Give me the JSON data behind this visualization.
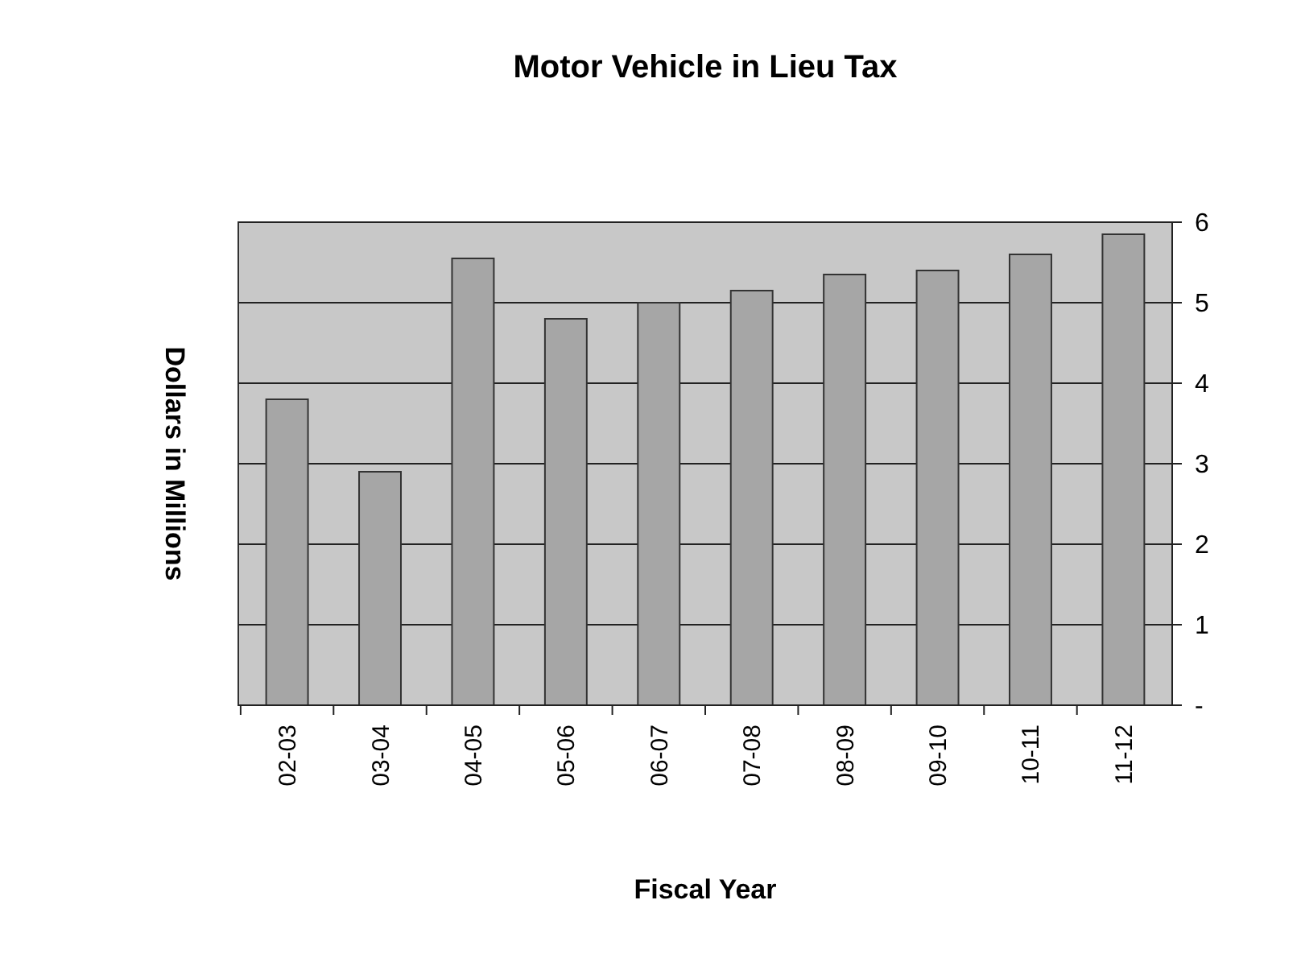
{
  "chart_data": {
    "type": "bar",
    "title": "Motor Vehicle in Lieu Tax",
    "xlabel": "Fiscal Year",
    "ylabel": "Dollars in Millions",
    "categories": [
      "02-03",
      "03-04",
      "04-05",
      "05-06",
      "06-07",
      "07-08",
      "08-09",
      "09-10",
      "10-11",
      "11-12"
    ],
    "values": [
      3.8,
      2.9,
      5.55,
      4.8,
      5.0,
      5.15,
      5.35,
      5.4,
      5.6,
      5.85
    ],
    "color": "#a6a6a6",
    "ylim": [
      0,
      6
    ],
    "yticks": [
      {
        "value": 0,
        "label": "-"
      },
      1,
      2,
      3,
      4,
      5,
      6
    ],
    "grid": "y"
  }
}
